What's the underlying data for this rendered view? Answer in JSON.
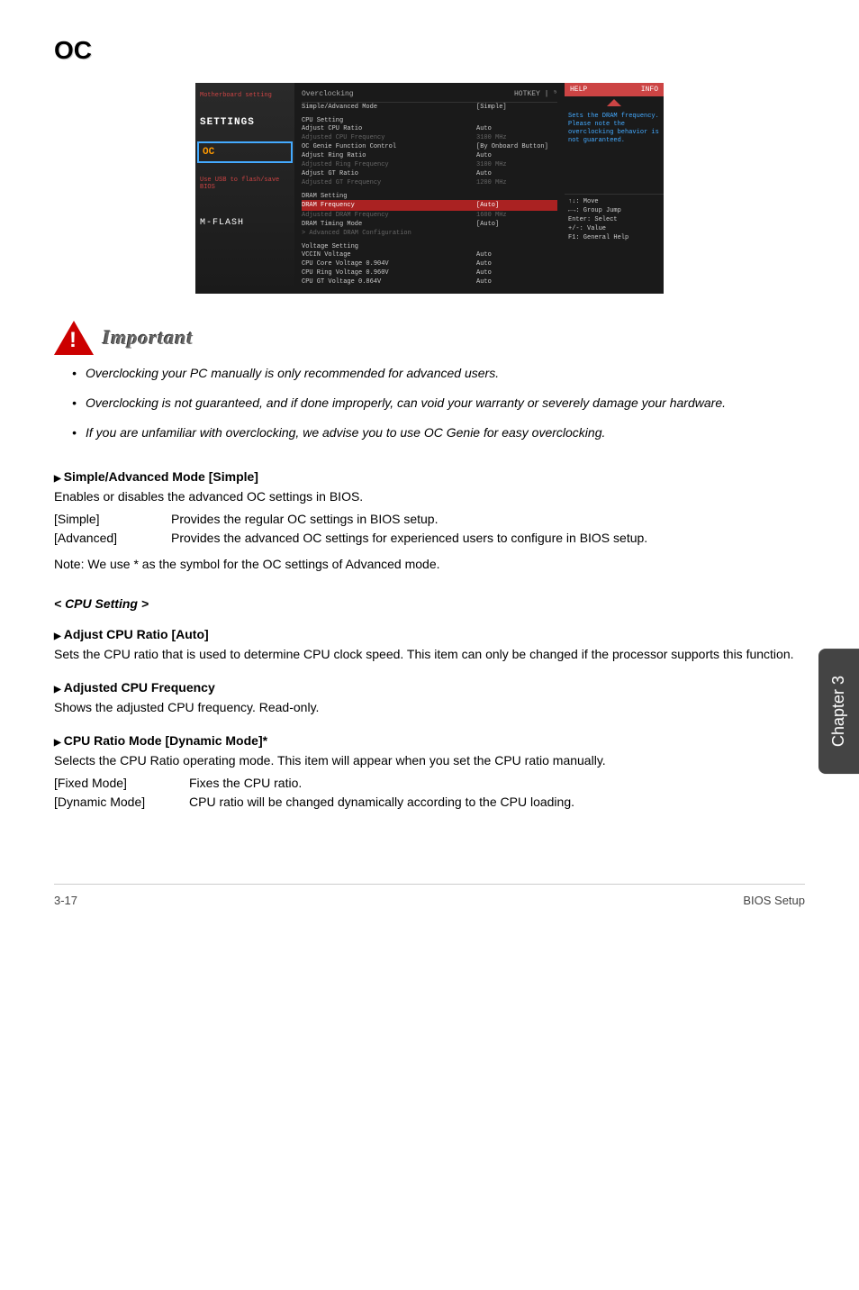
{
  "page": {
    "title": "OC",
    "footer_page": "3-17",
    "footer_section": "BIOS Setup",
    "chapter_tab": "Chapter 3"
  },
  "bios": {
    "sidebar": {
      "settings_sub": "Motherboard setting",
      "settings": "SETTINGS",
      "oc": "OC",
      "mflash_sub": "Use USB to flash/save BIOS",
      "mflash": "M-FLASH"
    },
    "header": {
      "title": "Overclocking",
      "hotkey": "HOTKEY | ⁵"
    },
    "rows": [
      {
        "label": "Simple/Advanced Mode",
        "value": "[Simple]",
        "cls": "white"
      },
      {
        "label": "CPU Setting",
        "value": "",
        "cls": "bios-section"
      },
      {
        "label": "Adjust CPU Ratio",
        "value": "Auto",
        "cls": "white"
      },
      {
        "label": "Adjusted CPU Frequency",
        "value": "3100 MHz",
        "cls": "gray"
      },
      {
        "label": "OC Genie Function Control",
        "value": "[By Onboard Button]",
        "cls": "white"
      },
      {
        "label": "Adjust Ring Ratio",
        "value": "Auto",
        "cls": "white"
      },
      {
        "label": "Adjusted Ring Frequency",
        "value": "3100 MHz",
        "cls": "gray"
      },
      {
        "label": "Adjust GT Ratio",
        "value": "Auto",
        "cls": "white"
      },
      {
        "label": "Adjusted GT Frequency",
        "value": "1200 MHz",
        "cls": "gray"
      },
      {
        "label": "DRAM Setting",
        "value": "",
        "cls": "bios-section"
      },
      {
        "label": "DRAM Frequency",
        "value": "[Auto]",
        "cls": "highlight"
      },
      {
        "label": "Adjusted DRAM Frequency",
        "value": "1600 MHz",
        "cls": "gray"
      },
      {
        "label": "DRAM Timing Mode",
        "value": "[Auto]",
        "cls": "white"
      },
      {
        "label": "> Advanced DRAM Configuration",
        "value": "",
        "cls": "gray"
      },
      {
        "label": "Voltage Setting",
        "value": "",
        "cls": "bios-section"
      },
      {
        "label": "VCCIN Voltage",
        "value": "Auto",
        "cls": "white"
      },
      {
        "label": "CPU Core Voltage         0.904V",
        "value": "Auto",
        "cls": "white"
      },
      {
        "label": "CPU Ring Voltage         0.960V",
        "value": "Auto",
        "cls": "white"
      },
      {
        "label": "CPU GT Voltage           0.864V",
        "value": "Auto",
        "cls": "white"
      }
    ],
    "help": {
      "header": "HELP",
      "info": "INFO",
      "text": "Sets the DRAM frequency. Please note the overclocking behavior is not guaranteed.",
      "nav": "↑↓: Move\n←→: Group Jump\nEnter: Select\n+/-: Value\nF1: General Help"
    }
  },
  "important": {
    "label": "Important",
    "bullets": [
      "Overclocking your PC manually is only recommended for advanced users.",
      "Overclocking is not guaranteed, and if done improperly, can void your warranty or severely damage your hardware.",
      "If you are unfamiliar with overclocking, we advise you to use OC Genie for easy overclocking."
    ]
  },
  "settings": {
    "s1": {
      "heading": "Simple/Advanced Mode [Simple]",
      "desc": "Enables or disables the advanced OC settings in BIOS.",
      "opts": [
        {
          "label": "[Simple]",
          "desc": "Provides the regular OC settings in BIOS setup."
        },
        {
          "label": "[Advanced]",
          "desc": "Provides the advanced OC settings for experienced users to configure in BIOS setup."
        }
      ],
      "note": "Note: We use * as the symbol for the OC settings of Advanced mode."
    },
    "subsection": "< CPU Setting >",
    "s2": {
      "heading": "Adjust CPU Ratio [Auto]",
      "desc": "Sets the CPU ratio that is used to determine CPU clock speed. This item can only be changed if the processor supports this function."
    },
    "s3": {
      "heading": "Adjusted CPU Frequency",
      "desc": "Shows the adjusted CPU frequency. Read-only."
    },
    "s4": {
      "heading": "CPU Ratio Mode [Dynamic Mode]*",
      "desc": "Selects the CPU Ratio operating mode. This item will appear when you set the CPU ratio manually.",
      "opts": [
        {
          "label": "[Fixed Mode]",
          "desc": "Fixes the CPU ratio."
        },
        {
          "label": "[Dynamic Mode]",
          "desc": "CPU ratio will be changed dynamically according to the CPU loading."
        }
      ]
    }
  }
}
